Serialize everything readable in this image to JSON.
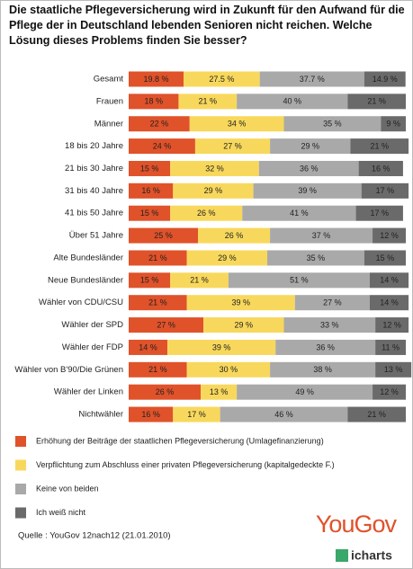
{
  "chart_data": {
    "type": "stacked-bar",
    "orientation": "horizontal",
    "title": "Die staatliche Pflegeversicherung wird in Zukunft für den Aufwand für die Pflege der in Deutschland lebenden Senioren nicht reichen. Welche Lösung dieses Problems finden Sie besser?",
    "categories": [
      "Gesamt",
      "Frauen",
      "Männer",
      "18 bis 20 Jahre",
      "21 bis 30 Jahre",
      "31 bis 40 Jahre",
      "41 bis 50 Jahre",
      "Über 51 Jahre",
      "Alte Bundesländer",
      "Neue Bundesländer",
      "Wähler von CDU/CSU",
      "Wähler der SPD",
      "Wähler der FDP",
      "Wähler von B'90/Die Grünen",
      "Wähler der Linken",
      "Nichtwähler"
    ],
    "series": [
      {
        "name": "Erhöhung der Beiträge der staatlichen Pflegeversicherung (Umlagefinanzierung)",
        "color": "#e0522a",
        "values": [
          19.8,
          18,
          22,
          24,
          15,
          16,
          15,
          25,
          21,
          15,
          21,
          27,
          14,
          21,
          26,
          16
        ],
        "value_labels": [
          "19.8 %",
          "18 %",
          "22 %",
          "24 %",
          "15 %",
          "16 %",
          "15 %",
          "25 %",
          "21 %",
          "15 %",
          "21 %",
          "27 %",
          "14 %",
          "21 %",
          "26 %",
          "16 %"
        ]
      },
      {
        "name": "Verpflichtung zum Abschluss einer privaten Pflegeversicherung (kapitalgedeckte F.)",
        "color": "#f8d85c",
        "values": [
          27.5,
          21,
          34,
          27,
          32,
          29,
          26,
          26,
          29,
          21,
          39,
          29,
          39,
          30,
          13,
          17
        ],
        "value_labels": [
          "27.5 %",
          "21 %",
          "34 %",
          "27 %",
          "32 %",
          "29 %",
          "26 %",
          "26 %",
          "29 %",
          "21 %",
          "39 %",
          "29 %",
          "39 %",
          "30 %",
          "13 %",
          "17 %"
        ]
      },
      {
        "name": "Keine von beiden",
        "color": "#a9a9a9",
        "values": [
          37.7,
          40,
          35,
          29,
          36,
          39,
          41,
          37,
          35,
          51,
          27,
          33,
          36,
          38,
          49,
          46
        ],
        "value_labels": [
          "37.7 %",
          "40 %",
          "35 %",
          "29 %",
          "36 %",
          "39 %",
          "41 %",
          "37 %",
          "35 %",
          "51 %",
          "27 %",
          "33 %",
          "36 %",
          "38 %",
          "49 %",
          "46 %"
        ]
      },
      {
        "name": "Ich weiß nicht",
        "color": "#6a6a6a",
        "values": [
          14.9,
          21,
          9,
          21,
          16,
          17,
          17,
          12,
          15,
          14,
          14,
          12,
          11,
          13,
          12,
          21
        ],
        "value_labels": [
          "14.9 %",
          "21 %",
          "9 %",
          "21 %",
          "16 %",
          "17 %",
          "17 %",
          "12 %",
          "15 %",
          "14 %",
          "14 %",
          "12 %",
          "11 %",
          "13 %",
          "12 %",
          "21 %"
        ]
      }
    ],
    "source": "Quelle : YouGov 12nach12 (21.01.2010)",
    "logo": "YouGov",
    "logo2": "icharts"
  }
}
